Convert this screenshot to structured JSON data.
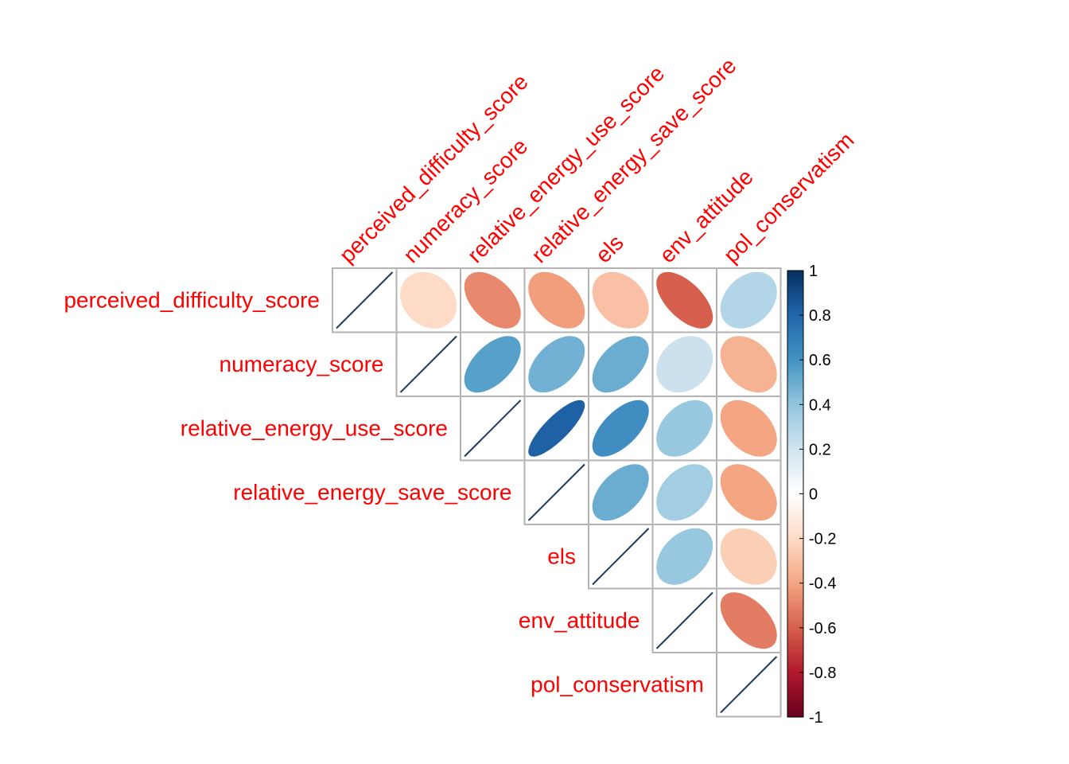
{
  "chart_data": {
    "type": "heatmap",
    "style": "upper-triangle correlation matrix, ellipse glyphs",
    "variables": [
      "perceived_difficulty_score",
      "numeracy_score",
      "relative_energy_use_score",
      "relative_energy_save_score",
      "els",
      "env_attitude",
      "pol_conservatism"
    ],
    "matrix": [
      [
        1.0,
        -0.2,
        -0.48,
        -0.42,
        -0.3,
        -0.6,
        0.3
      ],
      [
        -0.2,
        1.0,
        0.55,
        0.48,
        0.5,
        0.22,
        -0.35
      ],
      [
        -0.48,
        0.55,
        1.0,
        0.82,
        0.62,
        0.38,
        -0.4
      ],
      [
        -0.42,
        0.48,
        0.82,
        1.0,
        0.5,
        0.35,
        -0.4
      ],
      [
        -0.3,
        0.5,
        0.62,
        0.5,
        1.0,
        0.38,
        -0.25
      ],
      [
        -0.6,
        0.22,
        0.38,
        0.35,
        0.38,
        1.0,
        -0.52
      ],
      [
        0.3,
        -0.35,
        -0.4,
        -0.4,
        -0.25,
        -0.52,
        1.0
      ]
    ],
    "color_scale": {
      "range": [
        -1,
        1
      ],
      "ticks": [
        "1",
        "0.8",
        "0.6",
        "0.4",
        "0.2",
        "0",
        "-0.2",
        "-0.4",
        "-0.6",
        "-0.8",
        "-1"
      ],
      "tick_values": [
        1,
        0.8,
        0.6,
        0.4,
        0.2,
        0,
        -0.2,
        -0.4,
        -0.6,
        -0.8,
        -1
      ],
      "stops": [
        "#67001f",
        "#b2182b",
        "#d6604d",
        "#f4a582",
        "#fddbc7",
        "#ffffff",
        "#d1e5f0",
        "#92c5de",
        "#4393c3",
        "#2166ac",
        "#053061"
      ]
    },
    "label_color": "#ff0000",
    "grid_color": "#b3b3b3",
    "legend": "right"
  }
}
